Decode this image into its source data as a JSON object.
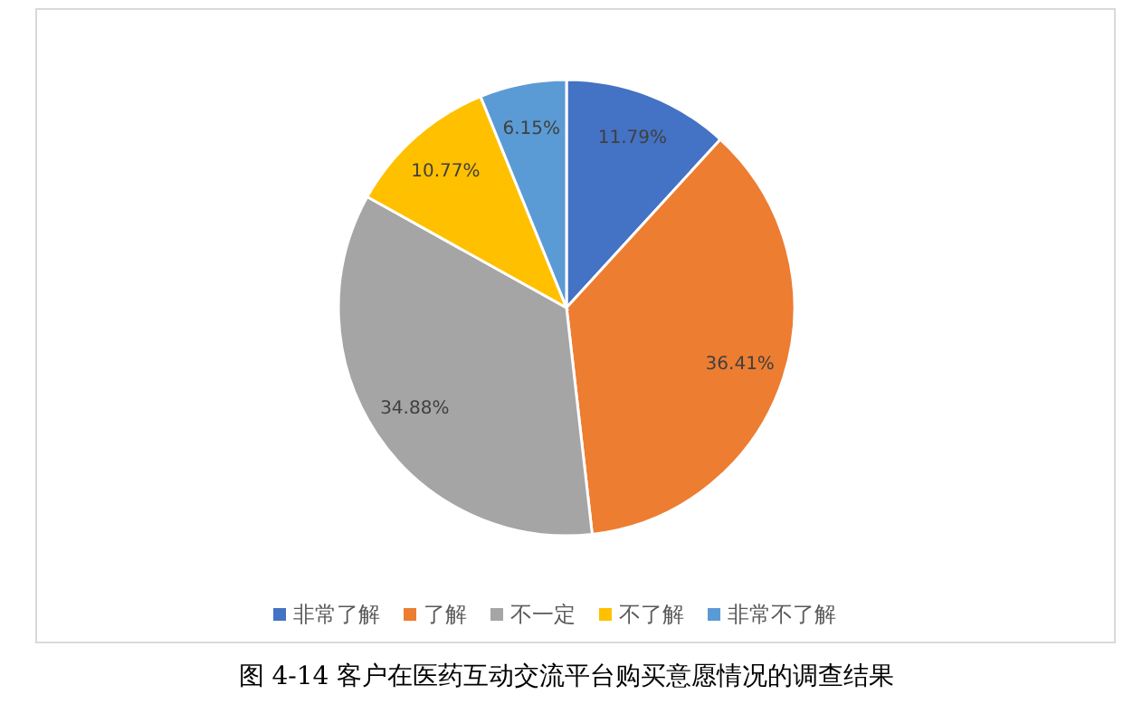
{
  "chart_data": {
    "type": "pie",
    "title": "图 4-14 客户在医药互动交流平台购买意愿情况的调查结果",
    "categories": [
      "非常了解",
      "了解",
      "不一定",
      "不了解",
      "非常不了解"
    ],
    "values": [
      11.79,
      36.41,
      34.88,
      10.77,
      6.15
    ],
    "colors": [
      "#4472c4",
      "#ed7d31",
      "#a5a5a5",
      "#ffc000",
      "#5b9bd5"
    ],
    "value_labels": [
      "11.79%",
      "36.41%",
      "34.88%",
      "10.77%",
      "6.15%"
    ],
    "legend": "bottom"
  }
}
